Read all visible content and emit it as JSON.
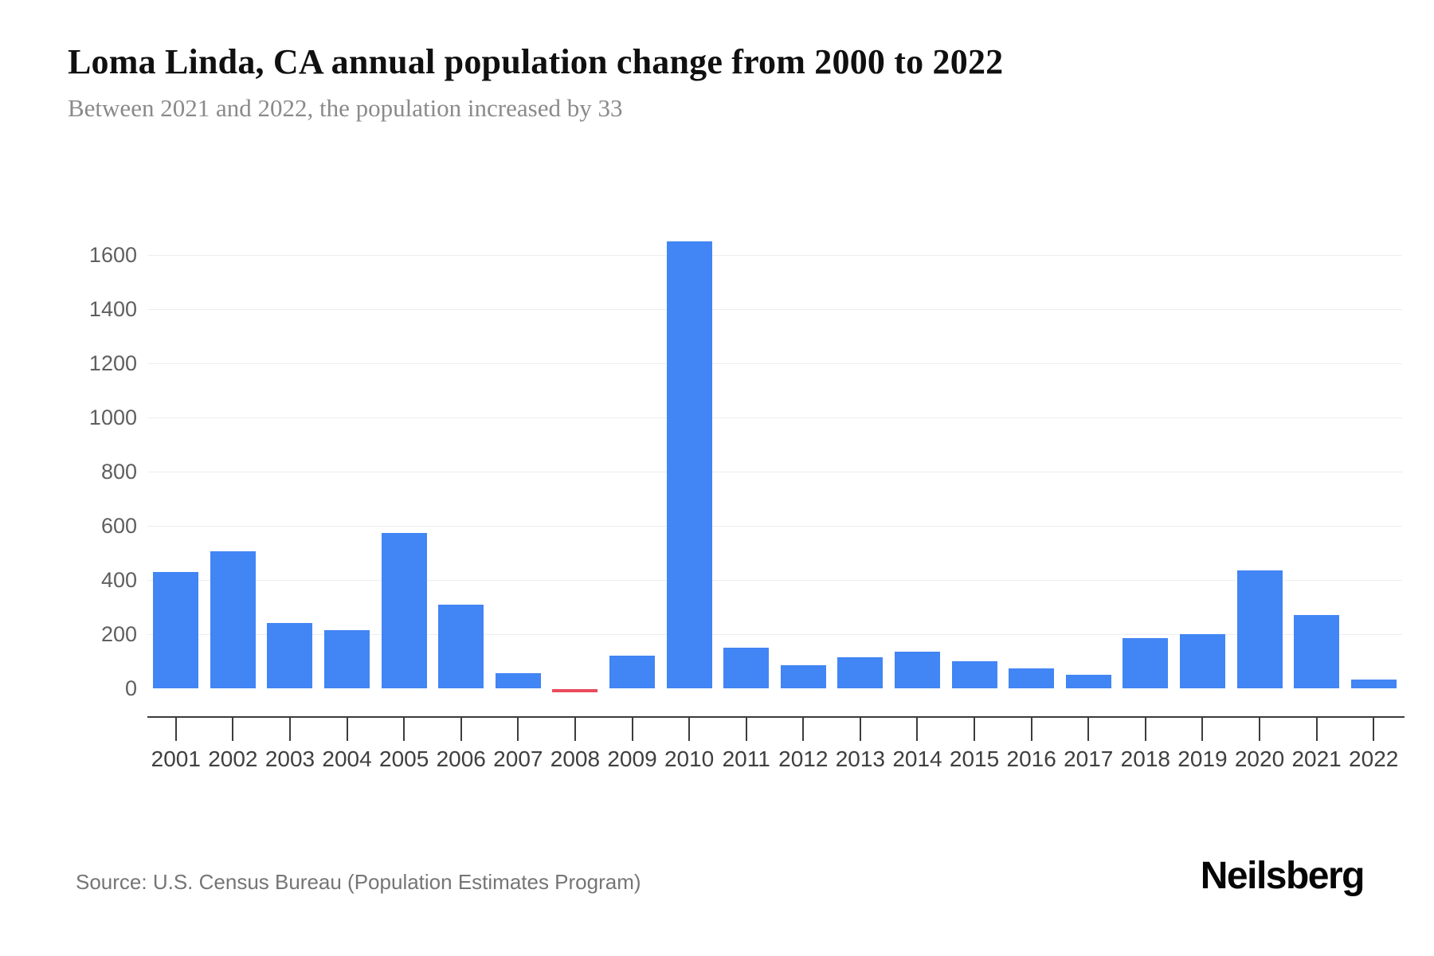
{
  "page": {
    "title": "Loma Linda, CA annual population change from 2000 to 2022",
    "subtitle": "Between 2021 and 2022, the population increased by 33",
    "source": "Source: U.S. Census Bureau (Population Estimates Program)",
    "brand": "Neilsberg"
  },
  "colors": {
    "bar_positive": "#4285F4",
    "bar_negative": "#E84C5C",
    "gridline": "#EDEDED",
    "axis_line": "#3C3C3C",
    "y_tick_label": "#5F5F5F",
    "x_tick_label": "#3F3F3F",
    "title": "#101010",
    "subtitle": "#8A8A8A",
    "source": "#757575",
    "background": "#FFFFFF"
  },
  "chart_data": {
    "type": "bar",
    "title": "Loma Linda, CA annual population change from 2000 to 2022",
    "subtitle": "Between 2021 and 2022, the population increased by 33",
    "xlabel": "",
    "ylabel": "",
    "legend": "none",
    "grid": "horizontal",
    "categories": [
      "2001",
      "2002",
      "2003",
      "2004",
      "2005",
      "2006",
      "2007",
      "2008",
      "2009",
      "2010",
      "2011",
      "2012",
      "2013",
      "2014",
      "2015",
      "2016",
      "2017",
      "2018",
      "2019",
      "2020",
      "2021",
      "2022"
    ],
    "values": [
      430,
      505,
      240,
      215,
      575,
      310,
      55,
      -13,
      120,
      1650,
      150,
      85,
      115,
      135,
      100,
      75,
      50,
      185,
      200,
      435,
      270,
      33
    ],
    "yticks": [
      0,
      200,
      400,
      600,
      800,
      1000,
      1200,
      1400,
      1600
    ],
    "ylim": [
      -60,
      1700
    ]
  }
}
